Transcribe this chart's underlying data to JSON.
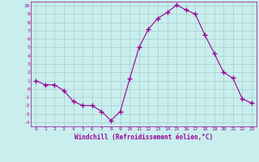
{
  "x": [
    0,
    1,
    2,
    3,
    4,
    5,
    6,
    7,
    8,
    9,
    10,
    11,
    12,
    13,
    14,
    15,
    16,
    17,
    18,
    19,
    20,
    21,
    22,
    23
  ],
  "y": [
    1.0,
    0.5,
    0.5,
    -0.2,
    -1.5,
    -2.0,
    -2.0,
    -2.7,
    -3.8,
    -2.7,
    1.2,
    5.0,
    7.2,
    8.5,
    9.2,
    10.1,
    9.5,
    9.0,
    6.5,
    4.3,
    2.0,
    1.3,
    -1.2,
    -1.7
  ],
  "line_color": "#990099",
  "marker": "+",
  "marker_size": 4,
  "bg_color": "#c8eeed",
  "grid_color": "#aacccc",
  "xlabel": "Windchill (Refroidissement éolien,°C)",
  "xlabel_fontsize": 5.5,
  "ytick_labels": [
    "10",
    "9",
    "8",
    "7",
    "6",
    "5",
    "4",
    "3",
    "2",
    "1",
    "0",
    "-1",
    "-2",
    "-3",
    "-4"
  ],
  "ytick_vals": [
    10,
    9,
    8,
    7,
    6,
    5,
    4,
    3,
    2,
    1,
    0,
    -1,
    -2,
    -3,
    -4
  ],
  "xlim": [
    -0.5,
    23.5
  ],
  "ylim": [
    -4.5,
    10.5
  ]
}
